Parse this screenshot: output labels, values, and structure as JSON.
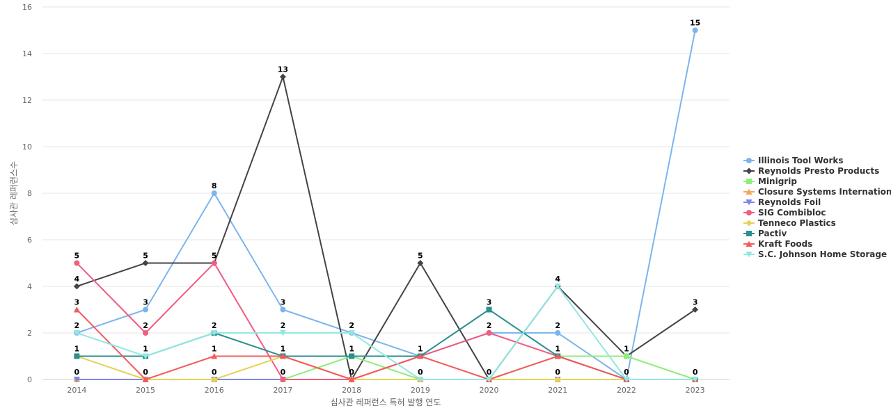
{
  "chart_data": {
    "type": "line",
    "title": "",
    "xlabel": "심사관 레퍼런스 특허 발행 연도",
    "ylabel": "심사관 레퍼런스수",
    "ylim": [
      0,
      16
    ],
    "y_ticks": [
      0,
      2,
      4,
      6,
      8,
      10,
      12,
      14,
      16
    ],
    "categories": [
      "2014",
      "2015",
      "2016",
      "2017",
      "2018",
      "2019",
      "2020",
      "2021",
      "2022",
      "2023"
    ],
    "grid": true,
    "legend_position": "right",
    "series": [
      {
        "name": "Illinois Tool Works",
        "color": "#7cb5ec",
        "marker": "circle",
        "values": [
          2,
          3,
          8,
          3,
          2,
          1,
          2,
          2,
          0,
          15
        ],
        "labels": [
          true,
          true,
          true,
          true,
          true,
          false,
          false,
          true,
          false,
          true
        ]
      },
      {
        "name": "Reynolds Presto Products",
        "color": "#434348",
        "marker": "diamond",
        "values": [
          4,
          5,
          5,
          13,
          0,
          5,
          0,
          4,
          1,
          3
        ],
        "labels": [
          true,
          true,
          false,
          true,
          true,
          true,
          true,
          true,
          true,
          true
        ]
      },
      {
        "name": "Minigrip",
        "color": "#90ed7d",
        "marker": "square",
        "values": [
          0,
          0,
          0,
          0,
          1,
          0,
          0,
          1,
          1,
          0
        ],
        "labels": [
          true,
          false,
          true,
          false,
          false,
          false,
          false,
          false,
          false,
          true
        ]
      },
      {
        "name": "Closure Systems International",
        "color": "#f7a35c",
        "marker": "triangle",
        "values": [
          0,
          0,
          0,
          0,
          0,
          0,
          0,
          0,
          0,
          0
        ],
        "labels": [
          false,
          false,
          false,
          false,
          false,
          false,
          false,
          false,
          false,
          false
        ]
      },
      {
        "name": "Reynolds Foil",
        "color": "#8085e9",
        "marker": "triangle-down",
        "values": [
          0,
          0,
          0,
          0,
          0,
          0,
          0,
          0,
          0,
          0
        ],
        "labels": [
          false,
          false,
          false,
          false,
          false,
          false,
          false,
          false,
          false,
          false
        ]
      },
      {
        "name": "SIG Combibloc",
        "color": "#f15c80",
        "marker": "circle",
        "values": [
          5,
          2,
          5,
          0,
          0,
          1,
          2,
          1,
          0,
          0
        ],
        "labels": [
          true,
          true,
          true,
          true,
          false,
          false,
          true,
          false,
          false,
          false
        ]
      },
      {
        "name": "Tenneco Plastics",
        "color": "#e4d354",
        "marker": "diamond",
        "values": [
          1,
          0,
          0,
          1,
          0,
          0,
          0,
          0,
          0,
          0
        ],
        "labels": [
          false,
          true,
          false,
          false,
          false,
          true,
          false,
          true,
          false,
          false
        ]
      },
      {
        "name": "Pactiv",
        "color": "#2b908f",
        "marker": "square",
        "values": [
          1,
          1,
          2,
          1,
          1,
          1,
          3,
          1,
          0,
          0
        ],
        "labels": [
          true,
          true,
          false,
          true,
          true,
          true,
          true,
          true,
          true,
          false
        ]
      },
      {
        "name": "Kraft Foods",
        "color": "#f45b5b",
        "marker": "triangle",
        "values": [
          3,
          0,
          1,
          1,
          0,
          1,
          0,
          1,
          0,
          0
        ],
        "labels": [
          true,
          false,
          true,
          false,
          false,
          false,
          false,
          false,
          false,
          false
        ]
      },
      {
        "name": "S.C. Johnson Home Storage",
        "color": "#91e8e1",
        "marker": "triangle-down",
        "values": [
          2,
          1,
          2,
          2,
          2,
          0,
          0,
          4,
          0,
          0
        ],
        "labels": [
          false,
          false,
          true,
          true,
          true,
          false,
          false,
          false,
          false,
          false
        ]
      }
    ]
  }
}
